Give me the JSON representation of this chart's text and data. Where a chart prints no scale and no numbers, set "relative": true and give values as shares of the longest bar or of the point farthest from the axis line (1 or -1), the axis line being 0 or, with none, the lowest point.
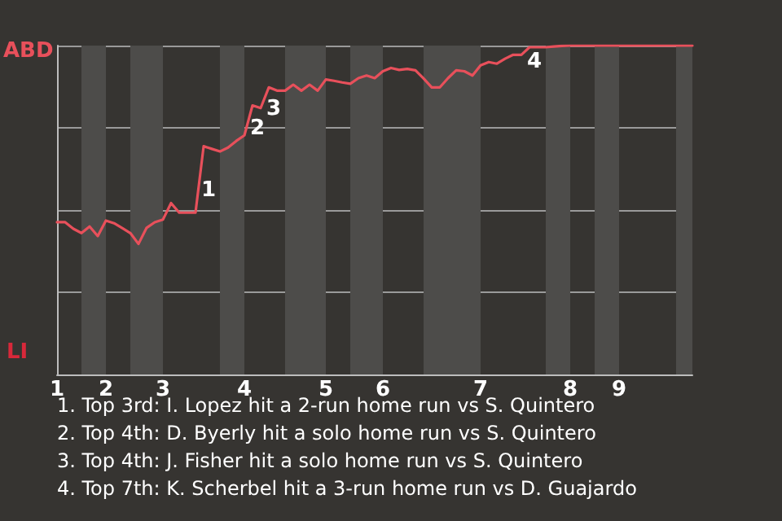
{
  "chart_data": {
    "type": "line",
    "relative": true,
    "categories": [
      "1",
      null,
      null,
      null,
      null,
      null,
      "2",
      null,
      null,
      null,
      null,
      null,
      null,
      "3",
      null,
      null,
      null,
      null,
      null,
      null,
      null,
      null,
      null,
      "4",
      null,
      null,
      null,
      null,
      null,
      null,
      null,
      null,
      null,
      "5",
      null,
      null,
      null,
      null,
      null,
      null,
      "6",
      null,
      null,
      null,
      null,
      null,
      null,
      null,
      null,
      null,
      null,
      null,
      "7",
      null,
      null,
      null,
      null,
      null,
      null,
      null,
      null,
      null,
      null,
      "8",
      null,
      null,
      null,
      null,
      null,
      "9",
      null,
      null,
      null,
      null,
      null,
      null,
      null,
      null,
      null
    ],
    "series": [
      {
        "color": "#e8505b",
        "values": [
          0.463,
          0.463,
          0.443,
          0.43,
          0.45,
          0.421,
          0.468,
          0.46,
          0.445,
          0.43,
          0.397,
          0.446,
          0.463,
          0.471,
          0.521,
          0.492,
          0.492,
          0.492,
          0.694,
          0.686,
          0.678,
          0.69,
          0.71,
          0.727,
          0.818,
          0.81,
          0.873,
          0.863,
          0.863,
          0.881,
          0.863,
          0.881,
          0.863,
          0.897,
          0.893,
          0.888,
          0.884,
          0.901,
          0.909,
          0.901,
          0.922,
          0.932,
          0.926,
          0.929,
          0.925,
          0.9,
          0.873,
          0.873,
          0.901,
          0.925,
          0.922,
          0.909,
          0.94,
          0.95,
          0.945,
          0.96,
          0.972,
          0.972,
          0.995,
          0.995,
          0.995,
          0.997,
          0.999,
          1,
          1,
          1,
          1,
          1,
          1,
          1,
          1,
          1,
          1,
          1,
          1,
          1,
          1,
          1,
          1
        ]
      }
    ],
    "grid": "y",
    "marker": "none",
    "line_style": "solid",
    "annotations": [
      "ABD",
      "LI",
      "1",
      "2",
      "3",
      "4",
      "1. Top 3rd: I. Lopez hit a 2-run home run vs S. Quintero",
      "2. Top 4th: D. Byerly hit a solo home run vs S. Quintero",
      "3. Top 4th: J. Fisher hit a solo home run vs S. Quintero",
      "4. Top 7th: K. Scherbel hit a 3-run home run vs D. Guajardo"
    ]
  }
}
